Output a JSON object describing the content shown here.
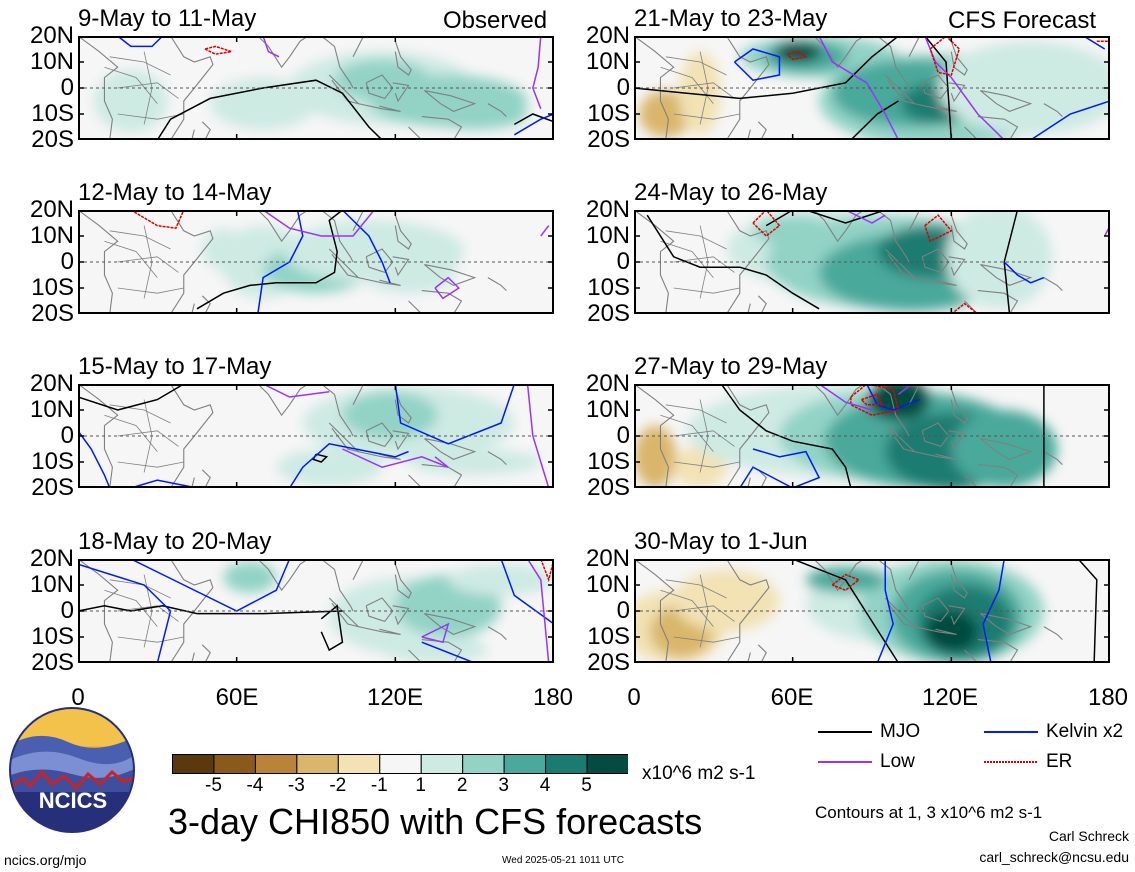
{
  "chart_data": {
    "type": "heatmap",
    "title": "3-day CHI850 with CFS forecasts",
    "variable": "CHI850",
    "units": "x10^6 m2 s-1",
    "longitude_range": [
      0,
      180
    ],
    "latitude_range": [
      -20,
      20
    ],
    "x_ticks": [
      "0",
      "60E",
      "120E",
      "180"
    ],
    "y_ticks": [
      "20N",
      "10N",
      "0",
      "10S",
      "20S"
    ],
    "color_levels": [
      "-5",
      "-4",
      "-3",
      "-2",
      "-1",
      "1",
      "2",
      "3",
      "4",
      "5"
    ],
    "color_scale": [
      "#5a3a0c",
      "#8a5a1a",
      "#b98437",
      "#d9b66b",
      "#f2e2b4",
      "#f6f6f6",
      "#cdeae3",
      "#92d3c6",
      "#4aa99b",
      "#1a7c71",
      "#064b41"
    ],
    "contour_note": "Contours at 1, 3 x10^6 m2 s-1",
    "legend": [
      {
        "name": "MJO",
        "color": "#000000"
      },
      {
        "name": "Kelvin x2",
        "color": "#0019ff"
      },
      {
        "name": "Low",
        "color": "#9933ff"
      },
      {
        "name": "ER",
        "color": "#dd0000"
      }
    ],
    "observed_label": "Observed",
    "forecast_label": "CFS Forecast",
    "panels": [
      {
        "period": "9-May to 11-May",
        "kind": "observed"
      },
      {
        "period": "12-May to 14-May",
        "kind": "observed"
      },
      {
        "period": "15-May to 17-May",
        "kind": "observed"
      },
      {
        "period": "18-May to 20-May",
        "kind": "observed"
      },
      {
        "period": "21-May to 23-May",
        "kind": "forecast"
      },
      {
        "period": "24-May to 26-May",
        "kind": "forecast"
      },
      {
        "period": "27-May to 29-May",
        "kind": "forecast"
      },
      {
        "period": "30-May to 1-Jun",
        "kind": "forecast"
      }
    ]
  },
  "footer": {
    "logo_text": "NCICS",
    "url": "ncics.org/mjo",
    "timestamp": "Wed 2025-05-21 1011 UTC",
    "author": "Carl Schreck",
    "email": "carl_schreck@ncsu.edu"
  }
}
